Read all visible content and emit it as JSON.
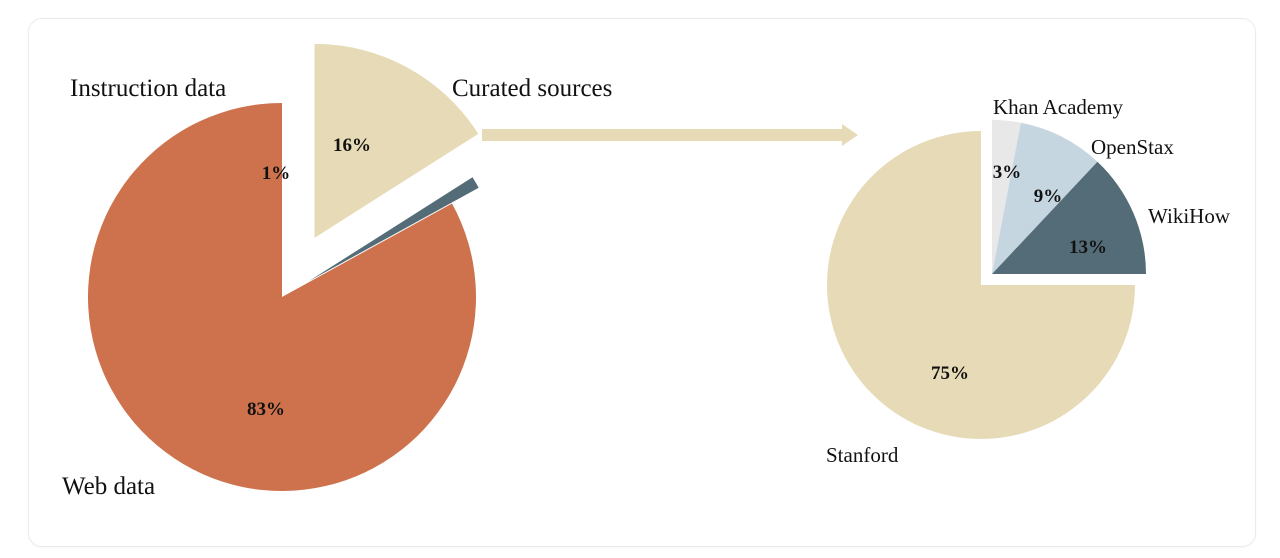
{
  "colors": {
    "web": "#cd724d",
    "instruction": "#546c78",
    "curated": "#e6dbb6",
    "stanford": "#e6dbb6",
    "khan": "#e8e8e8",
    "openstax": "#c5d6e0",
    "wikihow": "#546c78",
    "arrow": "#e6dbb6"
  },
  "chart_data": [
    {
      "type": "pie",
      "slices": [
        {
          "label": "Curated sources",
          "value": 16,
          "display": "16%",
          "exploded": true
        },
        {
          "label": "Instruction data",
          "value": 1,
          "display": "1%",
          "exploded": true
        },
        {
          "label": "Web data",
          "value": 83,
          "display": "83%",
          "exploded": false
        }
      ]
    },
    {
      "type": "pie",
      "slices": [
        {
          "label": "Khan Academy",
          "value": 3,
          "display": "3%",
          "exploded": true
        },
        {
          "label": "OpenStax",
          "value": 9,
          "display": "9%",
          "exploded": true
        },
        {
          "label": "WikiHow",
          "value": 13,
          "display": "13%",
          "exploded": true
        },
        {
          "label": "Stanford",
          "value": 75,
          "display": "75%",
          "exploded": false
        }
      ]
    }
  ]
}
